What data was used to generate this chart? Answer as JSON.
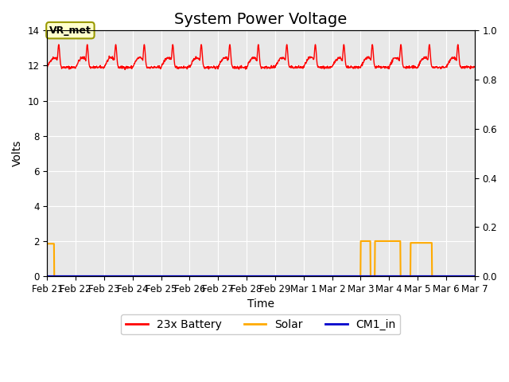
{
  "title": "System Power Voltage",
  "xlabel": "Time",
  "ylabel": "Volts",
  "ylabel2": "",
  "ylim_left": [
    0,
    14
  ],
  "ylim_right": [
    0.0,
    1.0
  ],
  "background_color": "#e8e8e8",
  "figure_bg": "#ffffff",
  "annotation_text": "VR_met",
  "annotation_bg": "#ffffcc",
  "annotation_edge": "#999900",
  "n_days": 15,
  "colors": {
    "battery": "#ff0000",
    "solar": "#ffaa00",
    "cm1": "#0000cc"
  },
  "legend_labels": [
    "23x Battery",
    "Solar",
    "CM1_in"
  ],
  "tick_labels": [
    "Feb 21",
    "Feb 22",
    "Feb 23",
    "Feb 24",
    "Feb 25",
    "Feb 26",
    "Feb 27",
    "Feb 28",
    "Feb 29",
    "Mar 1",
    "Mar 2",
    "Mar 3",
    "Mar 4",
    "Mar 5",
    "Mar 6",
    "Mar 7"
  ],
  "title_fontsize": 14,
  "axis_label_fontsize": 10,
  "tick_fontsize": 8.5,
  "legend_fontsize": 10
}
